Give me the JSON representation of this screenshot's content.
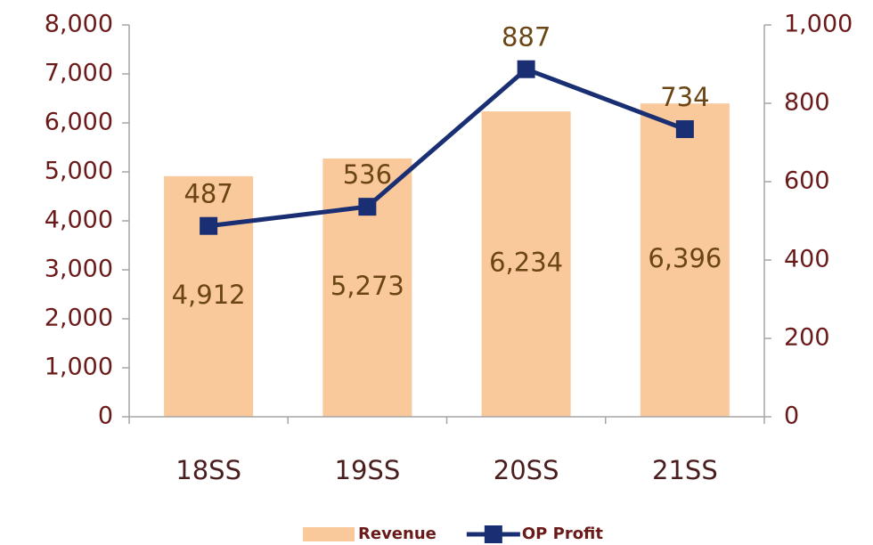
{
  "chart_data": {
    "type": "bar",
    "categories": [
      "18SS",
      "19SS",
      "20SS",
      "21SS"
    ],
    "series": [
      {
        "name": "Revenue",
        "type": "bar",
        "axis": "y",
        "color": "#f9c89b",
        "values": [
          4912,
          5273,
          6234,
          6396
        ],
        "value_labels": [
          "4,912",
          "5,273",
          "6,234",
          "6,396"
        ]
      },
      {
        "name": "OP Profit",
        "type": "line",
        "axis": "y2",
        "color": "#1a2f73",
        "values": [
          487,
          536,
          887,
          734
        ]
      }
    ],
    "ylim": [
      0,
      8000
    ],
    "yticks": [
      0,
      {
        "value": 1000,
        "label": "1,000"
      },
      {
        "value": 2000,
        "label": "2,000"
      },
      {
        "value": 3000,
        "label": "3,000"
      },
      {
        "value": 4000,
        "label": "4,000"
      },
      {
        "value": 5000,
        "label": "5,000"
      },
      {
        "value": 6000,
        "label": "6,000"
      },
      {
        "value": 7000,
        "label": "7,000"
      },
      {
        "value": 8000,
        "label": "8,000"
      }
    ],
    "y2lim": [
      0,
      1000
    ],
    "y2ticks": [
      0,
      200,
      400,
      600,
      800,
      {
        "value": 1000,
        "label": "1,000"
      }
    ],
    "grid": false,
    "legend": "bottom"
  }
}
